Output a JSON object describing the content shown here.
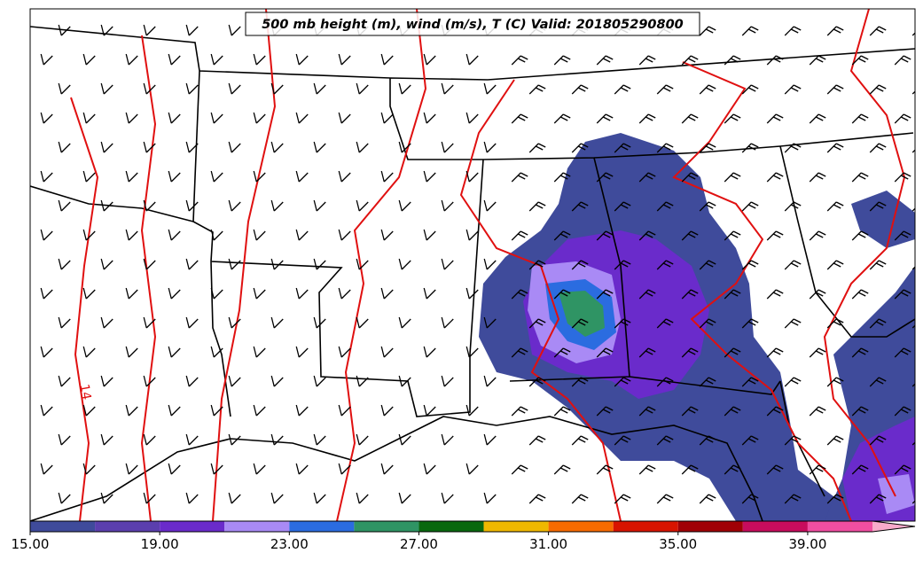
{
  "map": {
    "title": "500 mb height (m), wind (m/s), T (C) Valid: 201805290800",
    "contour_labels": [
      "14"
    ],
    "colorbar": {
      "bounds": [
        15,
        17,
        19,
        21,
        23,
        25,
        27,
        29,
        31,
        33,
        35,
        37,
        39,
        41
      ],
      "colors": [
        "#3f4b9b",
        "#5b3fae",
        "#6a2bcb",
        "#a98af5",
        "#2b6ce0",
        "#2f9464",
        "#09680e",
        "#efb800",
        "#f76b00",
        "#d81400",
        "#a00006",
        "#c80c5d",
        "#f04ea1"
      ],
      "extend_color": "#f8aacb",
      "ticks": [
        {
          "value": 15,
          "label": "15.00"
        },
        {
          "value": 19,
          "label": "19.00"
        },
        {
          "value": 23,
          "label": "23.00"
        },
        {
          "value": 27,
          "label": "27.00"
        },
        {
          "value": 31,
          "label": "31.00"
        },
        {
          "value": 35,
          "label": "35.00"
        },
        {
          "value": 39,
          "label": "39.00"
        }
      ]
    }
  }
}
